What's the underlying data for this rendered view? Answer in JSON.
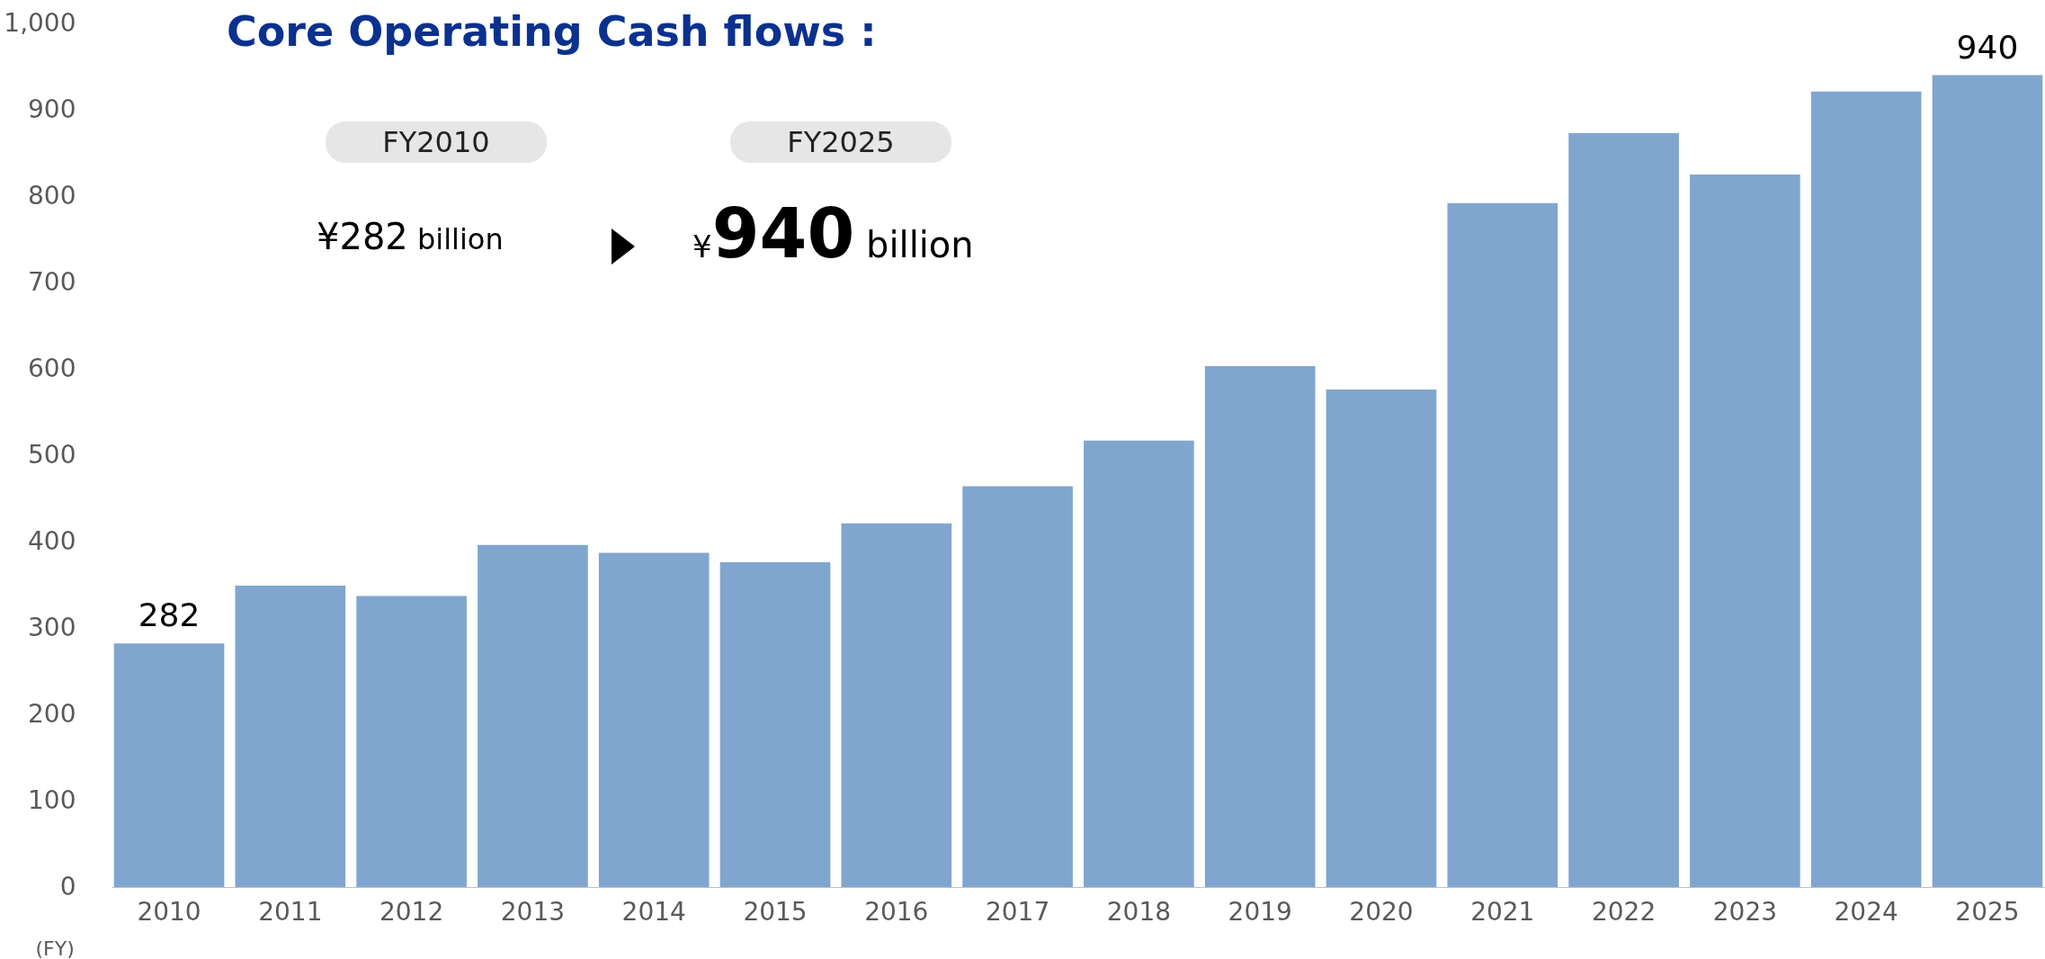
{
  "chart_data": {
    "type": "bar",
    "title": "Core Operating Cash flows :",
    "xlabel": "(FY)",
    "categories": [
      "2010",
      "2011",
      "2012",
      "2013",
      "2014",
      "2015",
      "2016",
      "2017",
      "2018",
      "2019",
      "2020",
      "2021",
      "2022",
      "2023",
      "2024",
      "2025"
    ],
    "values": [
      282,
      349,
      337,
      396,
      387,
      376,
      421,
      464,
      517,
      603,
      576,
      792,
      873,
      825,
      921,
      940
    ],
    "value_labels": [
      "282",
      null,
      null,
      null,
      null,
      null,
      null,
      null,
      null,
      null,
      null,
      null,
      null,
      null,
      null,
      "940"
    ],
    "color": "#80a6cf",
    "ylim": [
      0,
      1000
    ],
    "yticks": [
      0,
      100,
      200,
      300,
      400,
      500,
      600,
      700,
      800,
      900,
      {
        "value": 1000,
        "label": "1,000"
      }
    ],
    "grid": false,
    "annotations": [
      "FY2010",
      "FY2025",
      "¥282 billion",
      "¥940 billion"
    ]
  }
}
